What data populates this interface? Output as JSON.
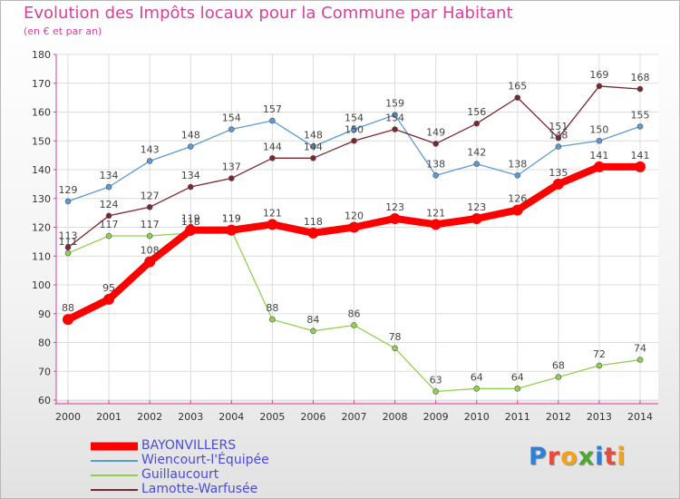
{
  "header": {
    "title": "Evolution des Impôts locaux pour la Commune par Habitant",
    "subtitle": "(en € et par an)"
  },
  "logo": {
    "letters": [
      "P",
      "r",
      "o",
      "x",
      "i",
      "t",
      "i"
    ],
    "colors": [
      "#2f7fd6",
      "#e84a3c",
      "#f3a21b",
      "#4aa82e",
      "#2f7fd6",
      "#e84a3c",
      "#f3a21b"
    ]
  },
  "chart_data": {
    "type": "line",
    "title": "Evolution des Impôts locaux pour la Commune par Habitant",
    "subtitle": "(en € et par an)",
    "xlabel": "",
    "ylabel": "",
    "x": [
      2000,
      2001,
      2002,
      2003,
      2004,
      2005,
      2006,
      2007,
      2008,
      2009,
      2010,
      2011,
      2012,
      2013,
      2014
    ],
    "ylim": [
      60,
      180
    ],
    "yticks": [
      60,
      70,
      80,
      90,
      100,
      110,
      120,
      130,
      140,
      150,
      160,
      170,
      180
    ],
    "grid": true,
    "legend_position": "bottom-left",
    "series": [
      {
        "name": "BAYONVILLERS",
        "color": "#ff0000",
        "emphasis": true,
        "values": [
          88,
          95,
          108,
          119,
          119,
          121,
          118,
          120,
          123,
          121,
          123,
          126,
          135,
          141,
          141
        ]
      },
      {
        "name": "Wiencourt-l'Équipée",
        "color": "#5b9bd5",
        "emphasis": false,
        "values": [
          129,
          134,
          143,
          148,
          154,
          157,
          148,
          154,
          159,
          138,
          142,
          138,
          148,
          150,
          155
        ]
      },
      {
        "name": "Guillaucourt",
        "color": "#92d050",
        "emphasis": false,
        "values": [
          111,
          117,
          117,
          118,
          119,
          88,
          84,
          86,
          78,
          63,
          64,
          64,
          68,
          72,
          74
        ]
      },
      {
        "name": "Lamotte-Warfusée",
        "color": "#7b2630",
        "emphasis": false,
        "values": [
          113,
          124,
          127,
          134,
          137,
          144,
          144,
          150,
          154,
          149,
          156,
          165,
          151,
          169,
          168
        ]
      }
    ]
  }
}
